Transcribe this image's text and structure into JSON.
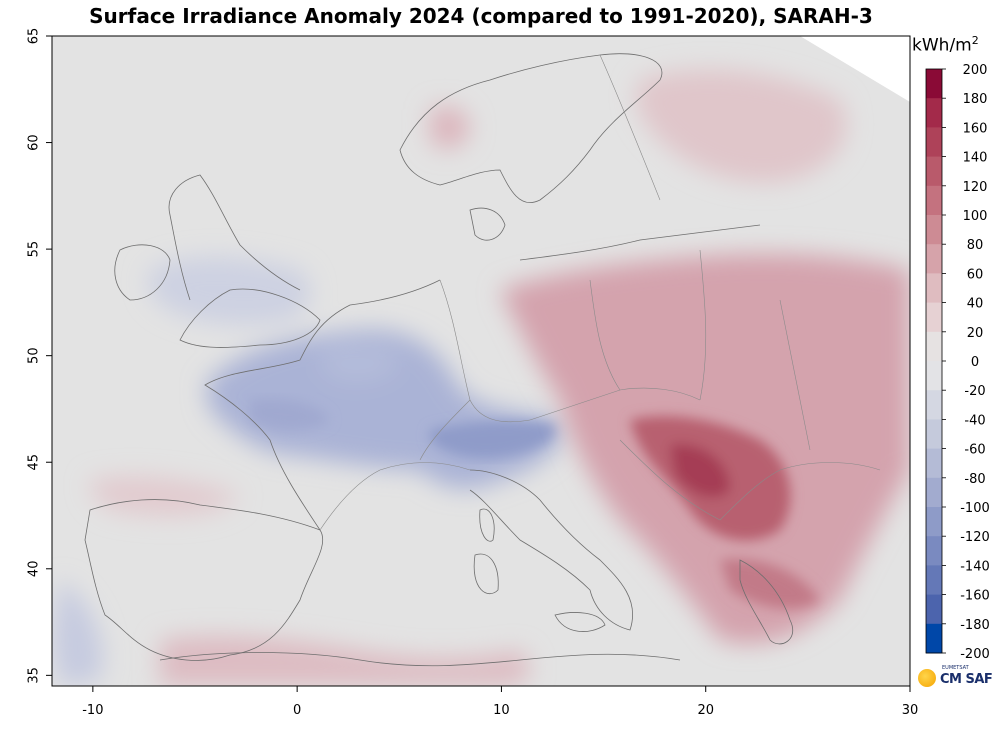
{
  "title": "Surface Irradiance Anomaly 2024 (compared to 1991-2020), SARAH-3",
  "unit": {
    "base": "kWh",
    "sep": "/",
    "denom": "m",
    "exp": "2"
  },
  "logo": {
    "text": "CM SAF",
    "small_text": "EUMETSAT"
  },
  "map": {
    "lon_range": [
      -12,
      30
    ],
    "lat_range": [
      34.5,
      65
    ],
    "x_ticks": [
      -10,
      0,
      10,
      20,
      30
    ],
    "y_ticks": [
      35,
      40,
      45,
      50,
      55,
      60,
      65
    ]
  },
  "colorbar": {
    "levels": [
      200,
      180,
      160,
      140,
      120,
      100,
      80,
      60,
      40,
      20,
      0,
      -20,
      -40,
      -60,
      -80,
      -100,
      -120,
      -140,
      -160,
      -180,
      -200
    ],
    "colors": [
      "#8a0a36",
      "#a32a4a",
      "#ae4259",
      "#b95a6b",
      "#c4727f",
      "#cd8b94",
      "#d6a3aa",
      "#dfbcc0",
      "#e6d1d3",
      "#e6e2e2",
      "#e3e3e6",
      "#d4d7e2",
      "#c5cadc",
      "#b4bbd6",
      "#a2abcf",
      "#8e9bc8",
      "#7a8ac0",
      "#6478b7",
      "#4c64ad",
      "#0047a8"
    ]
  },
  "regions": {
    "background_color": "#e3e3e3",
    "positive_color": "#d3a0aa",
    "strong_positive_color": "#b75a6d",
    "negative_color": "#aeb6d6",
    "strong_negative_color": "#8c98c8"
  }
}
